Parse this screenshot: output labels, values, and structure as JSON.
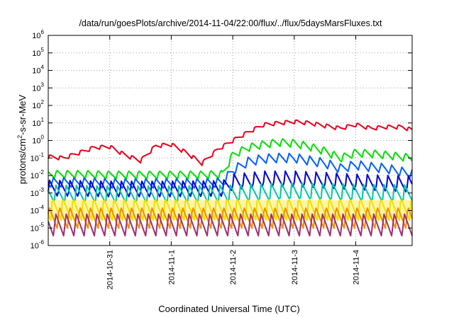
{
  "chart_data": {
    "type": "line",
    "title": "/data/run/goesPlots/archive/2014-11-04/22:00/flux/../flux/5daysMarsFluxes.txt",
    "xlabel": "Coordinated Universal Time (UTC)",
    "ylabel_parts": [
      "protons/cm",
      "2",
      "-s-sr-MeV"
    ],
    "yscale": "log",
    "ylim": [
      1e-06,
      1000000.0
    ],
    "yticks": [
      {
        "base": "10",
        "exp": "6",
        "value": 1000000.0
      },
      {
        "base": "10",
        "exp": "5",
        "value": 100000.0
      },
      {
        "base": "10",
        "exp": "4",
        "value": 10000.0
      },
      {
        "base": "10",
        "exp": "3",
        "value": 1000.0
      },
      {
        "base": "10",
        "exp": "2",
        "value": 100.0
      },
      {
        "base": "10",
        "exp": "1",
        "value": 10.0
      },
      {
        "base": "10",
        "exp": "0",
        "value": 1
      },
      {
        "base": "10",
        "exp": "-1",
        "value": 0.1
      },
      {
        "base": "10",
        "exp": "-2",
        "value": 0.01
      },
      {
        "base": "10",
        "exp": "-3",
        "value": 0.001
      },
      {
        "base": "10",
        "exp": "-4",
        "value": 0.0001
      },
      {
        "base": "10",
        "exp": "-5",
        "value": 1e-05
      },
      {
        "base": "10",
        "exp": "-6",
        "value": 1e-06
      }
    ],
    "xlim": [
      "2014-10-30T00:00",
      "2014-11-04T22:00"
    ],
    "xticks": [
      {
        "label": "2014-10-31",
        "value": "2014-10-31T00:00"
      },
      {
        "label": "2014-11-1",
        "value": "2014-11-01T00:00"
      },
      {
        "label": "2014-11-2",
        "value": "2014-11-02T00:00"
      },
      {
        "label": "2014-11-3",
        "value": "2014-11-03T00:00"
      },
      {
        "label": "2014-11-4",
        "value": "2014-11-04T00:00"
      }
    ],
    "grid": true,
    "sawtooth_period_hours": 4,
    "series": [
      {
        "color": "#e8001c",
        "x": [
          "2014-10-30T00:00",
          "2014-10-30T06:00",
          "2014-10-30T12:00",
          "2014-10-30T18:00",
          "2014-10-31T00:00",
          "2014-10-31T06:00",
          "2014-10-31T12:00",
          "2014-10-31T18:00",
          "2014-11-01T00:00",
          "2014-11-01T06:00",
          "2014-11-01T12:00",
          "2014-11-01T18:00",
          "2014-11-02T00:00",
          "2014-11-02T06:00",
          "2014-11-02T12:00",
          "2014-11-02T18:00",
          "2014-11-03T00:00",
          "2014-11-03T06:00",
          "2014-11-03T12:00",
          "2014-11-03T18:00",
          "2014-11-04T00:00",
          "2014-11-04T06:00",
          "2014-11-04T12:00",
          "2014-11-04T18:00",
          "2014-11-04T22:00"
        ],
        "values": [
          0.12,
          0.1,
          0.2,
          0.4,
          0.45,
          0.15,
          0.07,
          0.5,
          0.6,
          0.2,
          0.05,
          0.3,
          1.0,
          3.0,
          8.0,
          10.0,
          12.0,
          10.0,
          7.0,
          5.0,
          8.0,
          5.0,
          6.0,
          6.0,
          4.0
        ]
      },
      {
        "color": "#00e000",
        "x": [
          "2014-10-30T00:00",
          "2014-10-30T12:00",
          "2014-10-31T00:00",
          "2014-10-31T12:00",
          "2014-11-01T00:00",
          "2014-11-01T12:00",
          "2014-11-01T20:00",
          "2014-11-02T00:00",
          "2014-11-02T06:00",
          "2014-11-02T12:00",
          "2014-11-02T18:00",
          "2014-11-03T00:00",
          "2014-11-03T06:00",
          "2014-11-03T12:00",
          "2014-11-03T18:00",
          "2014-11-04T00:00",
          "2014-11-04T06:00",
          "2014-11-04T12:00",
          "2014-11-04T22:00"
        ],
        "values": [
          0.012,
          0.012,
          0.011,
          0.011,
          0.011,
          0.011,
          0.012,
          0.15,
          0.4,
          0.6,
          0.8,
          0.7,
          0.45,
          0.25,
          0.1,
          0.2,
          0.18,
          0.15,
          0.1
        ]
      },
      {
        "color": "#0060ff",
        "x": [
          "2014-10-30T00:00",
          "2014-10-30T12:00",
          "2014-10-31T00:00",
          "2014-10-31T12:00",
          "2014-11-01T00:00",
          "2014-11-01T12:00",
          "2014-11-01T20:00",
          "2014-11-02T00:00",
          "2014-11-02T06:00",
          "2014-11-02T12:00",
          "2014-11-02T18:00",
          "2014-11-03T00:00",
          "2014-11-03T06:00",
          "2014-11-03T12:00",
          "2014-11-03T18:00",
          "2014-11-04T00:00",
          "2014-11-04T06:00",
          "2014-11-04T12:00",
          "2014-11-04T22:00"
        ],
        "values": [
          0.004,
          0.004,
          0.0035,
          0.0035,
          0.0035,
          0.0035,
          0.004,
          0.02,
          0.06,
          0.09,
          0.1,
          0.1,
          0.07,
          0.05,
          0.025,
          0.04,
          0.03,
          0.025,
          0.012
        ]
      },
      {
        "color": "#0000d8",
        "x": [
          "2014-10-30T00:00",
          "2014-10-31T00:00",
          "2014-11-01T00:00",
          "2014-11-01T20:00",
          "2014-11-02T00:00",
          "2014-11-02T12:00",
          "2014-11-03T00:00",
          "2014-11-03T12:00",
          "2014-11-04T00:00",
          "2014-11-04T22:00"
        ],
        "values": [
          0.0018,
          0.0016,
          0.0016,
          0.0017,
          0.004,
          0.006,
          0.006,
          0.005,
          0.004,
          0.003
        ]
      },
      {
        "color": "#00c8a0",
        "x": [
          "2014-10-30T00:00",
          "2014-10-31T00:00",
          "2014-11-01T00:00",
          "2014-11-02T00:00",
          "2014-11-03T00:00",
          "2014-11-04T00:00",
          "2014-11-04T22:00"
        ],
        "values": [
          0.0009,
          0.0008,
          0.0008,
          0.0009,
          0.0012,
          0.001,
          0.0009
        ]
      },
      {
        "color": "#f0e000",
        "x": [
          "2014-10-30T00:00",
          "2014-11-02T00:00",
          "2014-11-04T22:00"
        ],
        "values": [
          0.00012,
          0.00013,
          0.00012
        ]
      },
      {
        "color": "#f09000",
        "x": [
          "2014-10-30T00:00",
          "2014-11-02T00:00",
          "2014-11-04T22:00"
        ],
        "values": [
          4e-05,
          4e-05,
          4e-05
        ]
      },
      {
        "color": "#a03070",
        "x": [
          "2014-10-30T00:00",
          "2014-11-02T00:00",
          "2014-11-04T22:00"
        ],
        "values": [
          1.5e-05,
          1.5e-05,
          1.5e-05
        ]
      }
    ]
  }
}
